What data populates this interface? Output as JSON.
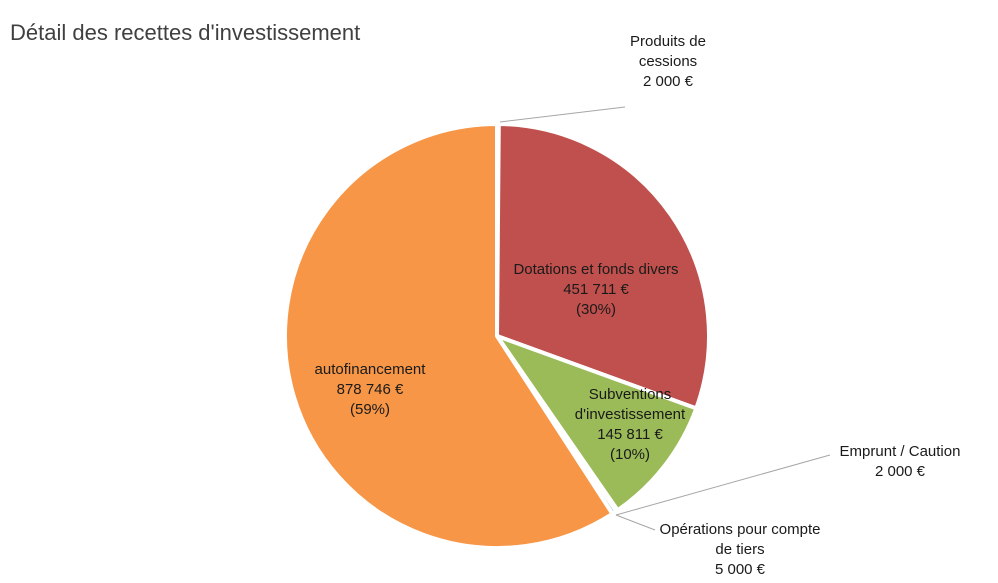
{
  "chart_data": {
    "type": "pie",
    "title": "Détail des recettes d'investissement",
    "categories": [
      "Produits de cessions",
      "Dotations et fonds divers",
      "Subventions d'investissement",
      "Emprunt / Caution",
      "Opérations pour compte de tiers",
      "autofinancement"
    ],
    "values": [
      2000,
      451711,
      145811,
      2000,
      5000,
      878746
    ],
    "value_labels": [
      "2 000 €",
      "451 711 €",
      "145 811 €",
      "2 000 €",
      "5 000 €",
      "878 746 €"
    ],
    "percent_labels": [
      null,
      "(30%)",
      "(10%)",
      null,
      null,
      "(59%)"
    ],
    "colors": [
      "#4f81bd",
      "#c0504d",
      "#9bbb59",
      "#8064a2",
      "#4bacc6",
      "#f79646"
    ]
  }
}
